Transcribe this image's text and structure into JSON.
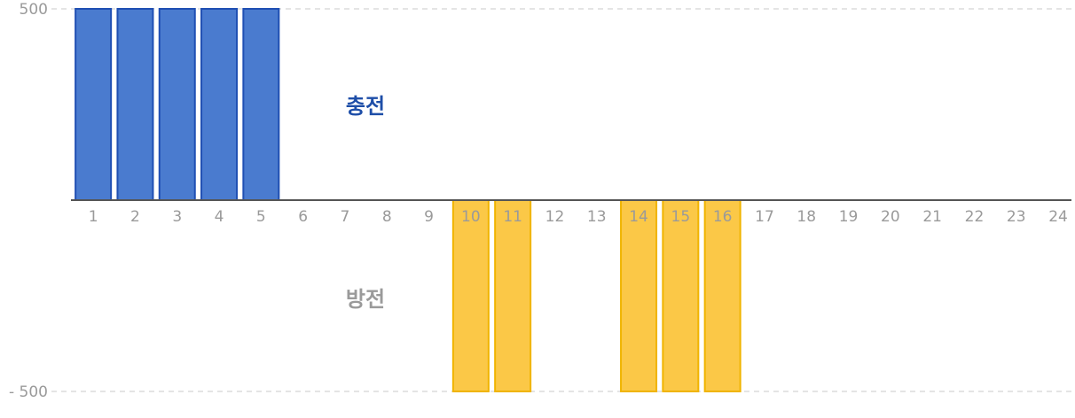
{
  "chart_data": {
    "type": "bar",
    "title": "",
    "xlabel": "",
    "ylabel": "",
    "categories": [
      "1",
      "2",
      "3",
      "4",
      "5",
      "6",
      "7",
      "8",
      "9",
      "10",
      "11",
      "12",
      "13",
      "14",
      "15",
      "16",
      "17",
      "18",
      "19",
      "20",
      "21",
      "22",
      "23",
      "24"
    ],
    "values": [
      500,
      500,
      500,
      500,
      500,
      0,
      0,
      0,
      0,
      -500,
      -500,
      0,
      0,
      -500,
      -500,
      -500,
      0,
      0,
      0,
      0,
      0,
      0,
      0,
      0
    ],
    "ylim": [
      -500,
      500
    ],
    "yticks": [
      {
        "value": 500,
        "label": "500"
      },
      {
        "value": -500,
        "label": "- 500"
      }
    ],
    "grid": true,
    "colors": {
      "positive_fill": "#4a7bcf",
      "positive_stroke": "#1f4fb3",
      "negative_fill": "#fbc847",
      "negative_stroke": "#f0b400",
      "charge_text": "#1e4ea8",
      "discharge_text": "#9a9a9a"
    },
    "annotations": {
      "charge": "충전",
      "discharge": "방전"
    }
  }
}
